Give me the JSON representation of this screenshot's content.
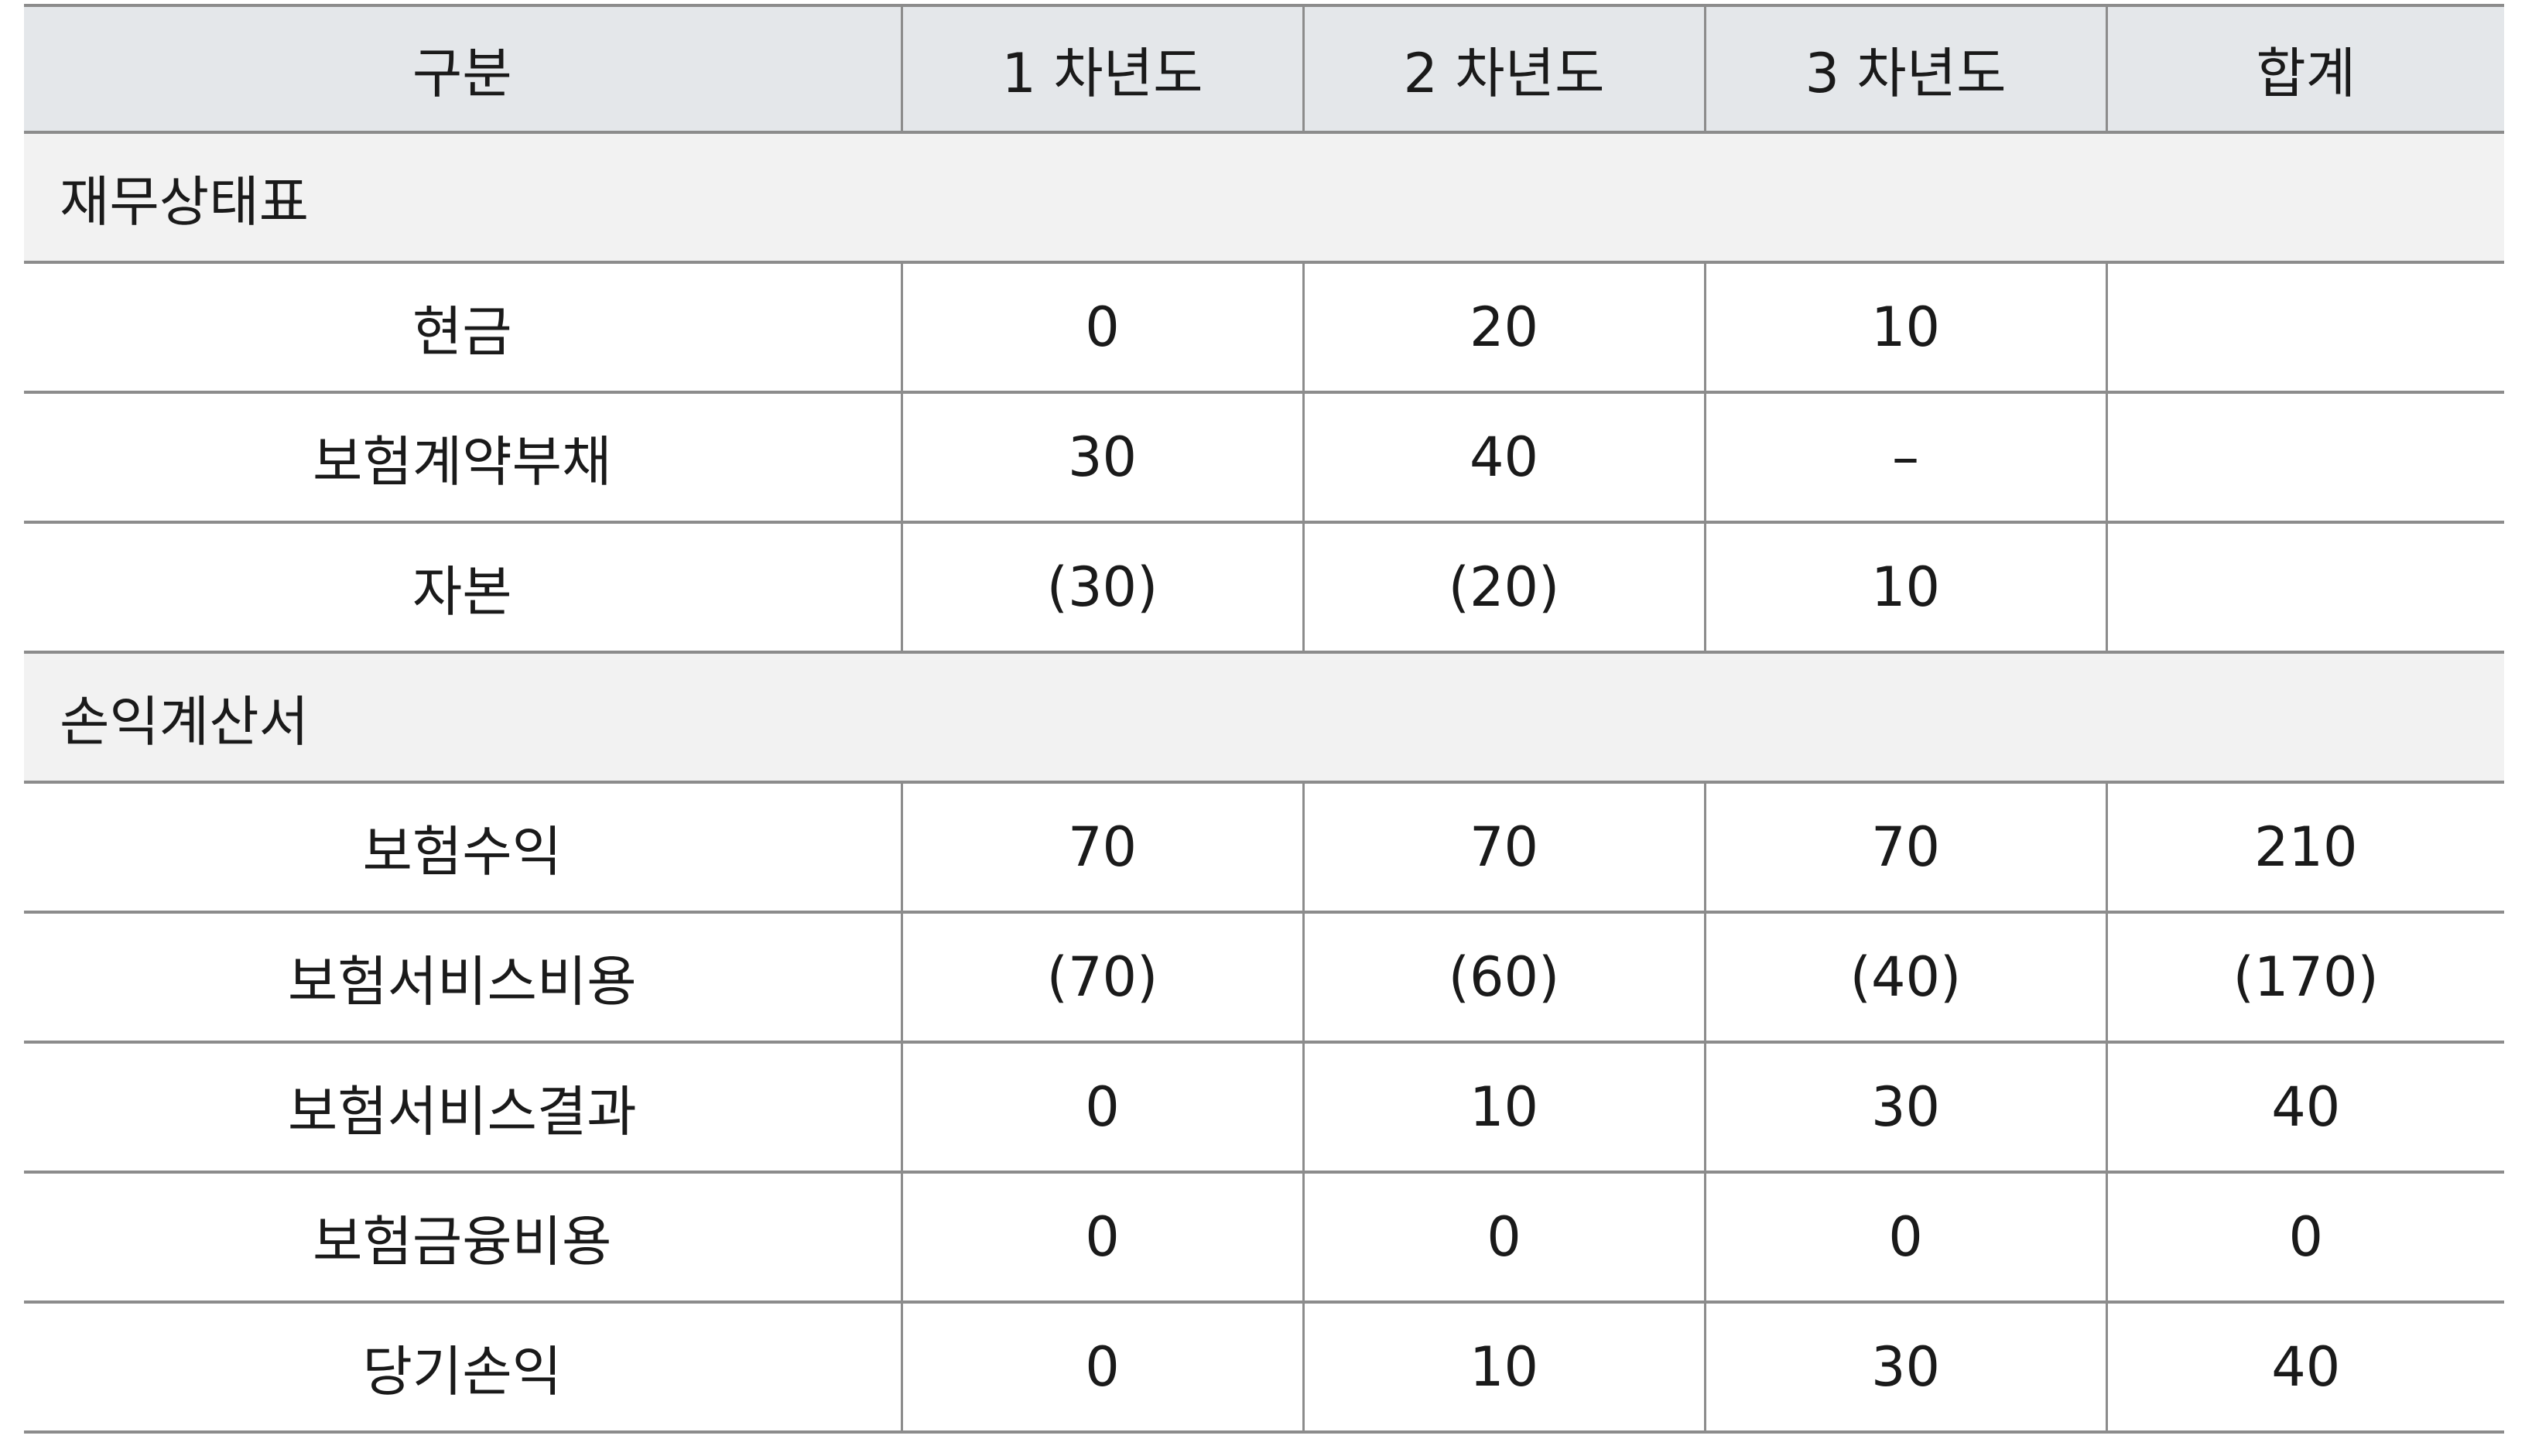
{
  "table": {
    "headers": [
      "구분",
      "1 차년도",
      "2 차년도",
      "3 차년도",
      "합계"
    ],
    "sections": [
      {
        "title": "재무상태표",
        "rows": [
          {
            "label": "현금",
            "values": [
              "0",
              "20",
              "10",
              ""
            ]
          },
          {
            "label": "보험계약부채",
            "values": [
              "30",
              "40",
              "–",
              ""
            ]
          },
          {
            "label": "자본",
            "values": [
              "(30)",
              "(20)",
              "10",
              ""
            ]
          }
        ]
      },
      {
        "title": "손익계산서",
        "rows": [
          {
            "label": "보험수익",
            "values": [
              "70",
              "70",
              "70",
              "210"
            ]
          },
          {
            "label": "보험서비스비용",
            "values": [
              "(70)",
              "(60)",
              "(40)",
              "(170)"
            ]
          },
          {
            "label": "보험서비스결과",
            "values": [
              "0",
              "10",
              "30",
              "40"
            ]
          },
          {
            "label": "보험금융비용",
            "values": [
              "0",
              "0",
              "0",
              "0"
            ]
          },
          {
            "label": "당기손익",
            "values": [
              "0",
              "10",
              "30",
              "40"
            ]
          }
        ]
      }
    ]
  }
}
